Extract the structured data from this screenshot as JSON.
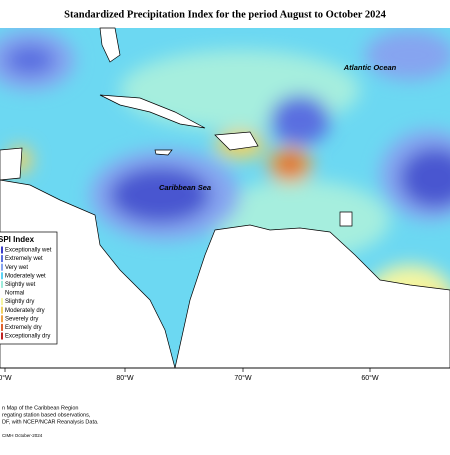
{
  "title": "Standardized Precipitation Index for the period August to October 2024",
  "ocean_labels": [
    "Atlantic Ocean",
    "Caribbean Sea"
  ],
  "longitude_labels": [
    "0°W",
    "80°W",
    "70°W",
    "60°W"
  ],
  "legend": {
    "title": "SPI Index",
    "entries": [
      {
        "label": "Exceptionally wet",
        "color": "#3c3cc8"
      },
      {
        "label": "Extremely wet",
        "color": "#5a6ee0"
      },
      {
        "label": "Very wet",
        "color": "#86a4f0"
      },
      {
        "label": "Moderately wet",
        "color": "#5ad2f5"
      },
      {
        "label": "Slightly wet",
        "color": "#9eecdc"
      },
      {
        "label": "Normal",
        "color": "#ffffff"
      },
      {
        "label": "Slightly dry",
        "color": "#f6f6a0"
      },
      {
        "label": "Moderately dry",
        "color": "#f0d264"
      },
      {
        "label": "Severely dry",
        "color": "#eea044"
      },
      {
        "label": "Extremely dry",
        "color": "#e0602c"
      },
      {
        "label": "Exceptionally dry",
        "color": "#c02020"
      }
    ]
  },
  "notes": [
    "n Map of the Caribbean Region",
    "regating station based observations,",
    "DF, with NCEP/NCAR Reanalysis Data.",
    "CIMH October-2024"
  ]
}
